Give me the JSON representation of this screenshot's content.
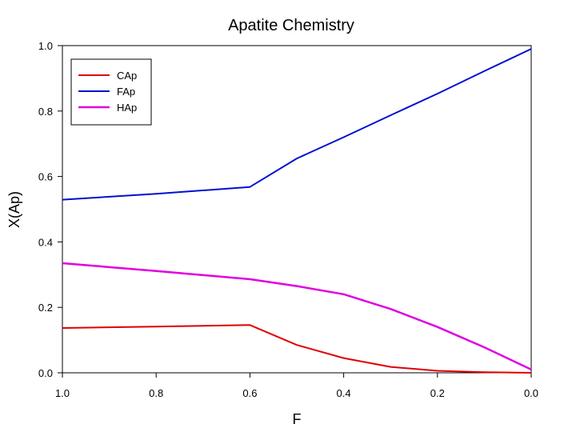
{
  "chart_data": {
    "type": "line",
    "title": "Apatite Chemistry",
    "xlabel": "F",
    "ylabel": "X(Ap)",
    "xlim": [
      1.0,
      0.0
    ],
    "ylim": [
      0.0,
      1.0
    ],
    "x_reversed": true,
    "grid": false,
    "legend_position": "top-left",
    "x_ticks": [
      "1.0",
      "0.8",
      "0.6",
      "0.4",
      "0.2",
      "0.0"
    ],
    "y_ticks": [
      "0.0",
      "0.2",
      "0.4",
      "0.6",
      "0.8",
      "1.0"
    ],
    "series": [
      {
        "name": "CAp",
        "color": "#e00000",
        "x": [
          1.0,
          0.8,
          0.6,
          0.5,
          0.4,
          0.3,
          0.2,
          0.1,
          0.0
        ],
        "y": [
          0.137,
          0.141,
          0.146,
          0.085,
          0.045,
          0.018,
          0.006,
          0.002,
          0.0
        ]
      },
      {
        "name": "FAp",
        "color": "#0010d0",
        "x": [
          1.0,
          0.8,
          0.6,
          0.5,
          0.4,
          0.3,
          0.2,
          0.1,
          0.0
        ],
        "y": [
          0.529,
          0.547,
          0.568,
          0.655,
          0.72,
          0.787,
          0.853,
          0.922,
          0.99
        ]
      },
      {
        "name": "HAp",
        "color": "#e000e0",
        "x": [
          1.0,
          0.8,
          0.6,
          0.5,
          0.4,
          0.3,
          0.2,
          0.1,
          0.0
        ],
        "y": [
          0.335,
          0.311,
          0.286,
          0.265,
          0.24,
          0.195,
          0.14,
          0.078,
          0.01
        ]
      }
    ]
  }
}
